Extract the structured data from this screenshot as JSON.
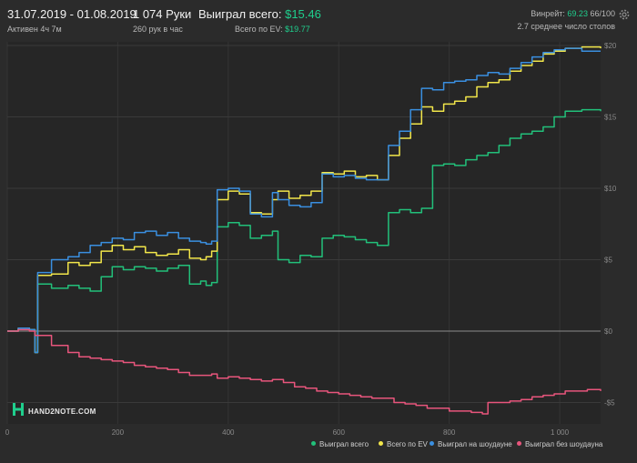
{
  "header": {
    "date_range": "31.07.2019 - 01.08.2019",
    "active": "Активен 4ч 7м",
    "hands": "1 074 Руки",
    "hands_per_hour": "260 рук в час",
    "won_label": "Выиграл всего:",
    "won_value": "$15.46",
    "ev_label": "Всего по EV:",
    "ev_value": "$19.77",
    "winrate_label": "Винрейт:",
    "winrate_value": "69.23",
    "winrate_unit": "66/100",
    "tables_avg": "2.7 среднее число столов"
  },
  "logo": {
    "text": "HAND2NOTE.COM"
  },
  "icons": {
    "settings": "gear-icon",
    "logo": "hand2note-logo-icon"
  },
  "colors": {
    "won_total": "#22c07a",
    "ev_total": "#f2e64a",
    "won_showdown": "#3a8fe0",
    "won_no_showdown": "#e8557c",
    "accent": "#1fcf8d"
  },
  "chart_data": {
    "type": "line",
    "xlim": [
      0,
      1074
    ],
    "ylim": [
      -6.5,
      20
    ],
    "x_ticks": [
      0,
      200,
      400,
      600,
      800,
      1000
    ],
    "x_tick_labels": [
      "0",
      "200",
      "400",
      "600",
      "800",
      "1 000"
    ],
    "y_ticks": [
      20,
      15,
      10,
      5,
      0,
      -5
    ],
    "y_tick_labels": [
      "$20",
      "$15",
      "$10",
      "$5",
      "$0",
      "-$5"
    ],
    "grid": true,
    "legend_position": "bottom-right",
    "series": [
      {
        "name": "Выиграл всего",
        "color": "#22c07a",
        "points": [
          [
            0,
            0
          ],
          [
            20,
            0.2
          ],
          [
            40,
            0.1
          ],
          [
            50,
            -1.5
          ],
          [
            55,
            3.3
          ],
          [
            80,
            3
          ],
          [
            110,
            3.2
          ],
          [
            130,
            3
          ],
          [
            150,
            2.8
          ],
          [
            170,
            3.8
          ],
          [
            190,
            4.5
          ],
          [
            210,
            4.3
          ],
          [
            230,
            4.5
          ],
          [
            250,
            4.4
          ],
          [
            270,
            4.2
          ],
          [
            290,
            4.4
          ],
          [
            310,
            4.6
          ],
          [
            330,
            3.3
          ],
          [
            350,
            3.5
          ],
          [
            360,
            3.2
          ],
          [
            370,
            3.4
          ],
          [
            380,
            7.3
          ],
          [
            400,
            7.6
          ],
          [
            420,
            7.4
          ],
          [
            440,
            6.5
          ],
          [
            460,
            6.7
          ],
          [
            480,
            7.0
          ],
          [
            490,
            5.0
          ],
          [
            510,
            4.8
          ],
          [
            530,
            5.3
          ],
          [
            550,
            5.2
          ],
          [
            570,
            6.5
          ],
          [
            590,
            6.7
          ],
          [
            610,
            6.6
          ],
          [
            630,
            6.4
          ],
          [
            650,
            6.2
          ],
          [
            670,
            6.0
          ],
          [
            680,
            6.0
          ],
          [
            690,
            8.3
          ],
          [
            710,
            8.5
          ],
          [
            730,
            8.3
          ],
          [
            750,
            8.6
          ],
          [
            770,
            11.6
          ],
          [
            790,
            11.7
          ],
          [
            810,
            11.6
          ],
          [
            830,
            12.0
          ],
          [
            850,
            12.3
          ],
          [
            870,
            12.5
          ],
          [
            890,
            13.0
          ],
          [
            910,
            13.5
          ],
          [
            930,
            13.8
          ],
          [
            950,
            14.0
          ],
          [
            970,
            14.3
          ],
          [
            990,
            15.0
          ],
          [
            1010,
            15.4
          ],
          [
            1040,
            15.5
          ],
          [
            1074,
            15.4
          ]
        ]
      },
      {
        "name": "Всего по EV",
        "color": "#f2e64a",
        "points": [
          [
            0,
            0
          ],
          [
            20,
            0.2
          ],
          [
            40,
            0.1
          ],
          [
            50,
            -1.5
          ],
          [
            55,
            3.9
          ],
          [
            80,
            4
          ],
          [
            110,
            4.8
          ],
          [
            130,
            4.6
          ],
          [
            150,
            4.8
          ],
          [
            170,
            5.6
          ],
          [
            190,
            6.0
          ],
          [
            210,
            5.7
          ],
          [
            230,
            5.9
          ],
          [
            250,
            5.5
          ],
          [
            270,
            5.3
          ],
          [
            290,
            5.4
          ],
          [
            310,
            5.7
          ],
          [
            330,
            5.1
          ],
          [
            350,
            5.0
          ],
          [
            360,
            5.2
          ],
          [
            370,
            5.6
          ],
          [
            380,
            9.2
          ],
          [
            400,
            9.8
          ],
          [
            420,
            9.6
          ],
          [
            440,
            8.3
          ],
          [
            460,
            8.2
          ],
          [
            480,
            9.2
          ],
          [
            490,
            9.8
          ],
          [
            510,
            9.3
          ],
          [
            530,
            9.5
          ],
          [
            550,
            9.8
          ],
          [
            570,
            11.1
          ],
          [
            590,
            11.0
          ],
          [
            610,
            11.2
          ],
          [
            630,
            10.8
          ],
          [
            650,
            10.9
          ],
          [
            670,
            10.6
          ],
          [
            680,
            10.6
          ],
          [
            690,
            12.3
          ],
          [
            710,
            13.5
          ],
          [
            730,
            14.5
          ],
          [
            750,
            15.7
          ],
          [
            770,
            15.4
          ],
          [
            790,
            15.9
          ],
          [
            810,
            16.1
          ],
          [
            830,
            16.4
          ],
          [
            850,
            17.1
          ],
          [
            870,
            17.4
          ],
          [
            890,
            17.6
          ],
          [
            910,
            18.2
          ],
          [
            930,
            18.6
          ],
          [
            950,
            18.9
          ],
          [
            970,
            19.4
          ],
          [
            990,
            19.6
          ],
          [
            1010,
            19.8
          ],
          [
            1040,
            19.9
          ],
          [
            1074,
            19.8
          ]
        ]
      },
      {
        "name": "Выиграл на шоудауне",
        "color": "#3a8fe0",
        "points": [
          [
            0,
            0
          ],
          [
            20,
            0.2
          ],
          [
            40,
            0.1
          ],
          [
            50,
            -1.5
          ],
          [
            55,
            4.1
          ],
          [
            80,
            5.0
          ],
          [
            110,
            5.2
          ],
          [
            130,
            5.5
          ],
          [
            150,
            6.0
          ],
          [
            170,
            6.2
          ],
          [
            190,
            6.5
          ],
          [
            210,
            6.4
          ],
          [
            230,
            6.9
          ],
          [
            250,
            7.0
          ],
          [
            270,
            6.7
          ],
          [
            290,
            6.9
          ],
          [
            310,
            6.5
          ],
          [
            330,
            6.3
          ],
          [
            350,
            6.2
          ],
          [
            360,
            6.1
          ],
          [
            370,
            6.3
          ],
          [
            380,
            9.9
          ],
          [
            400,
            10.0
          ],
          [
            420,
            9.8
          ],
          [
            440,
            8.2
          ],
          [
            460,
            8.0
          ],
          [
            480,
            9.7
          ],
          [
            490,
            9.2
          ],
          [
            510,
            8.8
          ],
          [
            530,
            8.7
          ],
          [
            550,
            9.0
          ],
          [
            570,
            11.0
          ],
          [
            590,
            10.8
          ],
          [
            610,
            10.9
          ],
          [
            630,
            10.7
          ],
          [
            650,
            10.6
          ],
          [
            670,
            10.6
          ],
          [
            680,
            10.6
          ],
          [
            690,
            13.0
          ],
          [
            710,
            14.0
          ],
          [
            730,
            15.5
          ],
          [
            750,
            17.0
          ],
          [
            770,
            16.9
          ],
          [
            790,
            17.4
          ],
          [
            810,
            17.5
          ],
          [
            830,
            17.6
          ],
          [
            850,
            17.9
          ],
          [
            870,
            18.1
          ],
          [
            890,
            18.0
          ],
          [
            910,
            18.4
          ],
          [
            930,
            18.8
          ],
          [
            950,
            19.2
          ],
          [
            970,
            19.5
          ],
          [
            990,
            19.7
          ],
          [
            1010,
            19.8
          ],
          [
            1040,
            19.6
          ],
          [
            1074,
            19.6
          ]
        ]
      },
      {
        "name": "Выиграл без шоудауна",
        "color": "#e8557c",
        "points": [
          [
            0,
            0
          ],
          [
            20,
            0.1
          ],
          [
            40,
            0.0
          ],
          [
            50,
            -0.3
          ],
          [
            80,
            -1.0
          ],
          [
            110,
            -1.5
          ],
          [
            130,
            -1.8
          ],
          [
            150,
            -1.9
          ],
          [
            170,
            -2.0
          ],
          [
            190,
            -2.1
          ],
          [
            210,
            -2.2
          ],
          [
            230,
            -2.4
          ],
          [
            250,
            -2.5
          ],
          [
            270,
            -2.6
          ],
          [
            290,
            -2.7
          ],
          [
            310,
            -2.9
          ],
          [
            330,
            -3.1
          ],
          [
            350,
            -3.1
          ],
          [
            370,
            -3.0
          ],
          [
            380,
            -3.3
          ],
          [
            400,
            -3.2
          ],
          [
            420,
            -3.3
          ],
          [
            440,
            -3.4
          ],
          [
            460,
            -3.5
          ],
          [
            480,
            -3.4
          ],
          [
            500,
            -3.6
          ],
          [
            520,
            -3.9
          ],
          [
            540,
            -4.0
          ],
          [
            560,
            -4.2
          ],
          [
            580,
            -4.3
          ],
          [
            600,
            -4.4
          ],
          [
            620,
            -4.5
          ],
          [
            640,
            -4.6
          ],
          [
            660,
            -4.7
          ],
          [
            680,
            -4.7
          ],
          [
            700,
            -5.0
          ],
          [
            720,
            -5.1
          ],
          [
            740,
            -5.2
          ],
          [
            760,
            -5.4
          ],
          [
            780,
            -5.4
          ],
          [
            800,
            -5.6
          ],
          [
            820,
            -5.6
          ],
          [
            840,
            -5.7
          ],
          [
            860,
            -5.8
          ],
          [
            870,
            -5.0
          ],
          [
            890,
            -5.0
          ],
          [
            910,
            -4.9
          ],
          [
            930,
            -4.8
          ],
          [
            950,
            -4.6
          ],
          [
            970,
            -4.5
          ],
          [
            990,
            -4.4
          ],
          [
            1010,
            -4.2
          ],
          [
            1030,
            -4.2
          ],
          [
            1050,
            -4.1
          ],
          [
            1074,
            -4.2
          ]
        ]
      }
    ]
  }
}
